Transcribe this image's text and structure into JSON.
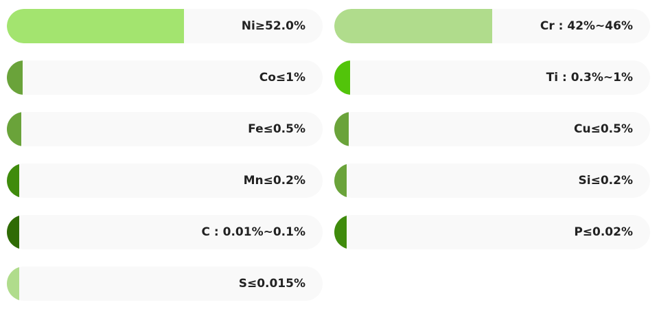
{
  "chart_data": {
    "type": "bar",
    "orientation": "horizontal",
    "columns": [
      {
        "items": [
          {
            "label": "Ni≥52.0%",
            "value": 0.56,
            "color": "#a3e46f"
          },
          {
            "label": "Co≤1%",
            "value": 0.05,
            "color": "#6aa33a"
          },
          {
            "label": "Fe≤0.5%",
            "value": 0.045,
            "color": "#6aa33a"
          },
          {
            "label": "Mn≤0.2%",
            "value": 0.04,
            "color": "#3f8b0c"
          },
          {
            "label": "C : 0.01%~0.1%",
            "value": 0.04,
            "color": "#2f6b05"
          },
          {
            "label": "S≤0.015%",
            "value": 0.04,
            "color": "#b0dc8c"
          }
        ]
      },
      {
        "items": [
          {
            "label": "Cr : 42%~46%",
            "value": 0.5,
            "color": "#b0dc8c"
          },
          {
            "label": "Ti : 0.3%~1%",
            "value": 0.05,
            "color": "#52c40a"
          },
          {
            "label": "Cu≤0.5%",
            "value": 0.045,
            "color": "#6aa33a"
          },
          {
            "label": "Si≤0.2%",
            "value": 0.04,
            "color": "#6aa33a"
          },
          {
            "label": "P≤0.02%",
            "value": 0.04,
            "color": "#3f8b0c"
          }
        ]
      }
    ]
  }
}
